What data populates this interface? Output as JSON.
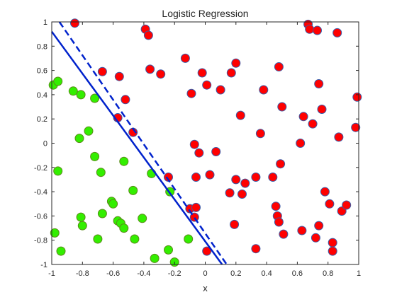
{
  "chart_data": {
    "type": "scatter",
    "title": "Logistic Regression",
    "xlabel": "x",
    "ylabel": "",
    "xlim": [
      -1,
      1
    ],
    "ylim": [
      -1,
      1
    ],
    "xticks": [
      "-1",
      "-0.8",
      "-0.6",
      "-0.4",
      "-0.2",
      "0",
      "0.2",
      "0.4",
      "0.6",
      "0.8",
      "1"
    ],
    "yticks": [
      "-1",
      "-0.8",
      "-0.6",
      "-0.4",
      "-0.2",
      "0",
      "0.2",
      "0.4",
      "0.6",
      "0.8",
      "1"
    ],
    "grid": false,
    "series": [
      {
        "color": "#ff0000",
        "edge_color": "#3c5aa6",
        "points": [
          [
            -0.85,
            0.99
          ],
          [
            -0.39,
            0.94
          ],
          [
            -0.37,
            0.89
          ],
          [
            0.67,
            0.98
          ],
          [
            0.68,
            0.94
          ],
          [
            0.73,
            0.93
          ],
          [
            0.86,
            0.91
          ],
          [
            -0.67,
            0.59
          ],
          [
            -0.56,
            0.55
          ],
          [
            -0.36,
            0.61
          ],
          [
            -0.29,
            0.57
          ],
          [
            -0.13,
            0.7
          ],
          [
            -0.09,
            0.41
          ],
          [
            -0.02,
            0.58
          ],
          [
            0.01,
            0.48
          ],
          [
            0.1,
            0.44
          ],
          [
            0.17,
            0.58
          ],
          [
            0.2,
            0.66
          ],
          [
            0.48,
            0.63
          ],
          [
            0.38,
            0.44
          ],
          [
            0.74,
            0.49
          ],
          [
            -0.52,
            0.36
          ],
          [
            -0.57,
            0.21
          ],
          [
            -0.47,
            0.09
          ],
          [
            0.23,
            0.23
          ],
          [
            0.5,
            0.3
          ],
          [
            0.64,
            0.22
          ],
          [
            0.7,
            0.16
          ],
          [
            0.76,
            0.28
          ],
          [
            0.99,
            0.38
          ],
          [
            0.36,
            0.08
          ],
          [
            0.62,
            0.0
          ],
          [
            0.87,
            0.05
          ],
          [
            0.98,
            0.13
          ],
          [
            -0.07,
            -0.01
          ],
          [
            -0.04,
            -0.08
          ],
          [
            0.07,
            -0.07
          ],
          [
            0.49,
            -0.17
          ],
          [
            -0.24,
            -0.28
          ],
          [
            -0.06,
            -0.28
          ],
          [
            0.03,
            -0.26
          ],
          [
            0.2,
            -0.3
          ],
          [
            0.26,
            -0.33
          ],
          [
            0.33,
            -0.28
          ],
          [
            0.44,
            -0.28
          ],
          [
            0.16,
            -0.41
          ],
          [
            0.24,
            -0.42
          ],
          [
            0.78,
            -0.4
          ],
          [
            0.46,
            -0.52
          ],
          [
            0.81,
            -0.5
          ],
          [
            0.89,
            -0.56
          ],
          [
            0.92,
            -0.51
          ],
          [
            -0.1,
            -0.54
          ],
          [
            -0.06,
            -0.53
          ],
          [
            -0.07,
            -0.61
          ],
          [
            0.47,
            -0.6
          ],
          [
            0.48,
            -0.65
          ],
          [
            0.51,
            -0.75
          ],
          [
            0.63,
            -0.72
          ],
          [
            0.74,
            -0.68
          ],
          [
            0.19,
            -0.67
          ],
          [
            0.72,
            -0.78
          ],
          [
            0.33,
            -0.87
          ],
          [
            0.83,
            -0.82
          ],
          [
            0.83,
            -0.89
          ],
          [
            0.01,
            -0.89
          ]
        ]
      },
      {
        "color": "#33ee00",
        "edge_color": "#5a8a1a",
        "points": [
          [
            -0.99,
            0.48
          ],
          [
            -0.96,
            0.51
          ],
          [
            -0.86,
            0.43
          ],
          [
            -0.81,
            0.4
          ],
          [
            -0.72,
            0.37
          ],
          [
            -0.76,
            0.1
          ],
          [
            -0.82,
            0.04
          ],
          [
            -0.72,
            -0.11
          ],
          [
            -0.68,
            -0.24
          ],
          [
            -0.96,
            -0.23
          ],
          [
            -0.53,
            -0.15
          ],
          [
            -0.35,
            -0.25
          ],
          [
            -0.47,
            -0.39
          ],
          [
            -0.61,
            -0.48
          ],
          [
            -0.6,
            -0.5
          ],
          [
            -0.67,
            -0.58
          ],
          [
            -0.57,
            -0.64
          ],
          [
            -0.55,
            -0.66
          ],
          [
            -0.81,
            -0.61
          ],
          [
            -0.8,
            -0.68
          ],
          [
            -0.53,
            -0.7
          ],
          [
            -0.41,
            -0.62
          ],
          [
            -0.23,
            -0.4
          ],
          [
            -0.98,
            -0.74
          ],
          [
            -0.7,
            -0.79
          ],
          [
            -0.46,
            -0.79
          ],
          [
            -0.11,
            -0.79
          ],
          [
            -0.94,
            -0.89
          ],
          [
            -0.24,
            -0.88
          ],
          [
            -0.33,
            -0.95
          ],
          [
            -0.2,
            -0.98
          ]
        ]
      }
    ],
    "boundaries": [
      {
        "style": "solid",
        "x": [
          -1.0,
          0.11
        ],
        "y": [
          0.92,
          -1.0
        ]
      },
      {
        "style": "dashed",
        "x": [
          -0.95,
          0.14
        ],
        "y": [
          1.0,
          -1.0
        ]
      }
    ]
  }
}
